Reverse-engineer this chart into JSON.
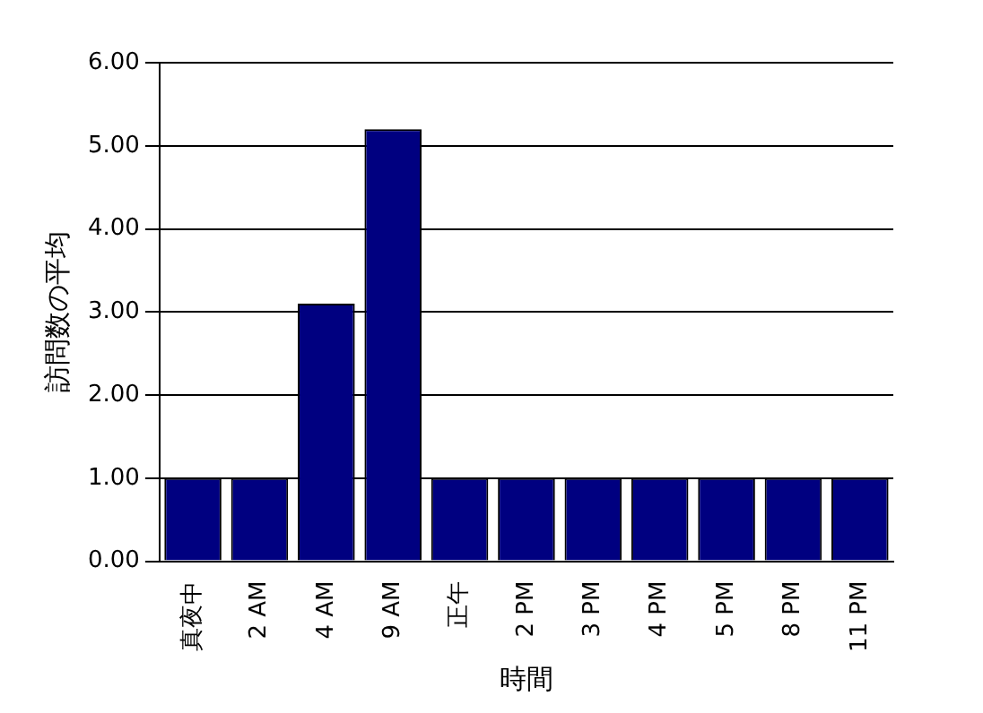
{
  "chart_data": {
    "type": "bar",
    "xlabel": "時間",
    "ylabel": "訪問数の平均",
    "categories": [
      "真夜中",
      "2 AM",
      "4 AM",
      "9 AM",
      "正午",
      "2 PM",
      "3 PM",
      "4 PM",
      "5 PM",
      "8 PM",
      "11 PM"
    ],
    "values": [
      1,
      1,
      3.1,
      5.2,
      1,
      1,
      1,
      1,
      1,
      1,
      1
    ],
    "color": "#000080",
    "ylim": [
      0,
      6
    ],
    "yticks": [
      {
        "value": 0,
        "label": "0.00"
      },
      {
        "value": 1,
        "label": "1.00"
      },
      {
        "value": 2,
        "label": "2.00"
      },
      {
        "value": 3,
        "label": "3.00"
      },
      {
        "value": 4,
        "label": "4.00"
      },
      {
        "value": 5,
        "label": "5.00"
      },
      {
        "value": 6,
        "label": "6.00"
      }
    ],
    "grid": "y",
    "legend": false
  }
}
